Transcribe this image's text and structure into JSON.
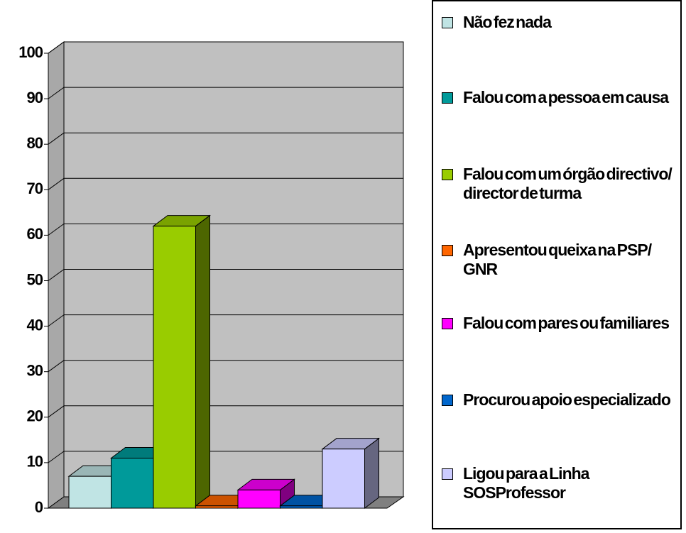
{
  "chart_data": {
    "type": "bar3d",
    "ylim": [
      0,
      100
    ],
    "yticks": [
      0,
      10,
      20,
      30,
      40,
      50,
      60,
      70,
      80,
      90,
      100
    ],
    "grid": true,
    "series": [
      {
        "name": "Não fez nada",
        "color": "#c0e4e4",
        "values": [
          7
        ]
      },
      {
        "name": "Falou com a pessoa em causa",
        "color": "#009a9a",
        "values": [
          11
        ]
      },
      {
        "name": "Falou com um órgão directivo/ director de turma",
        "color": "#99cc00",
        "values": [
          62
        ]
      },
      {
        "name": "Apresentou queixa na PSP/ GNR",
        "color": "#ff6600",
        "values": [
          0.5
        ]
      },
      {
        "name": "Falou com pares ou familiares",
        "color": "#ff00ff",
        "values": [
          4
        ]
      },
      {
        "name": "Procurou apoio especializado",
        "color": "#0066cc",
        "values": [
          0.5
        ]
      },
      {
        "name": "Ligou para a Linha SOSProfessor",
        "color": "#ccccff",
        "values": [
          13
        ]
      }
    ],
    "legend": "right"
  }
}
